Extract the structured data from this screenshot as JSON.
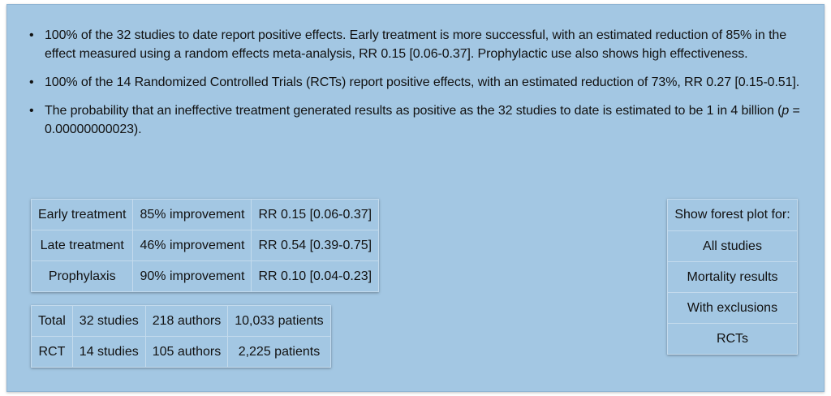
{
  "bullets": [
    {
      "text": "100% of the 32 studies to date report positive effects. Early treatment is more successful, with an estimated reduction of 85% in the effect measured using a random effects meta-analysis, RR 0.15 [0.06-0.37]. Prophylactic use also shows high effectiveness."
    },
    {
      "text": "100% of the 14 Randomized Controlled Trials (RCTs) report positive effects, with an estimated reduction of 73%, RR 0.27 [0.15-0.51]."
    },
    {
      "text_before": "The probability that an ineffective treatment generated results as positive as the 32 studies to date is estimated to be 1 in 4 billion (",
      "italic": "p",
      "text_after": " = 0.00000000023)."
    }
  ],
  "results_table": [
    [
      "Early treatment",
      "85% improvement",
      "RR 0.15 [0.06-0.37]"
    ],
    [
      "Late treatment",
      "46% improvement",
      "RR 0.54 [0.39-0.75]"
    ],
    [
      "Prophylaxis",
      "90% improvement",
      "RR 0.10 [0.04-0.23]"
    ]
  ],
  "counts_table": [
    [
      "Total",
      "32 studies",
      "218 authors",
      "10,033 patients"
    ],
    [
      "RCT",
      "14 studies",
      "105 authors",
      "2,225 patients"
    ]
  ],
  "forest": {
    "header": "Show forest plot for:",
    "options": [
      "All studies",
      "Mortality results",
      "With exclusions",
      "RCTs"
    ]
  }
}
